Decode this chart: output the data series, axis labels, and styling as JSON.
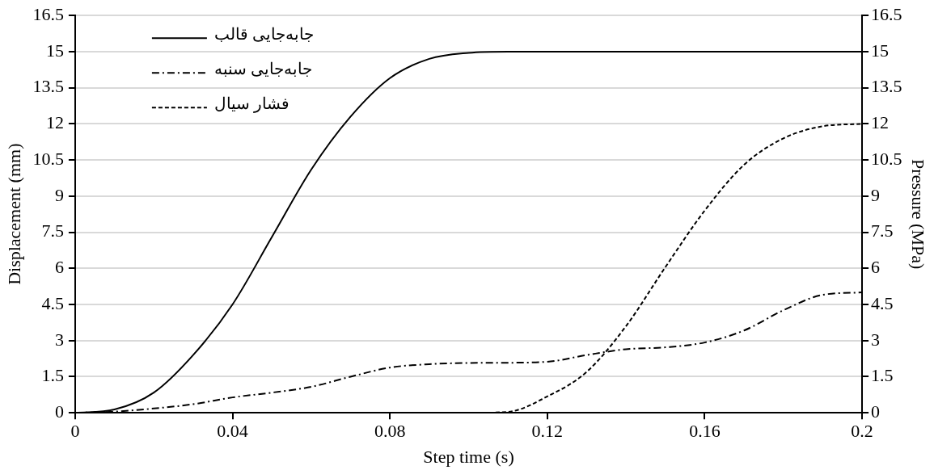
{
  "chart_data": {
    "type": "line",
    "xlabel": "Step time (s)",
    "ylabel": "Displacement (mm)",
    "y2label": "Pressure (MPa)",
    "x": [
      0,
      0.01,
      0.02,
      0.03,
      0.04,
      0.05,
      0.06,
      0.07,
      0.08,
      0.09,
      0.1,
      0.11,
      0.12,
      0.13,
      0.14,
      0.15,
      0.16,
      0.17,
      0.18,
      0.19,
      0.2
    ],
    "series": [
      {
        "name": "جابه‌جایی قالب",
        "color": "#000000",
        "line_style": "solid",
        "values": [
          0,
          0.14,
          0.84,
          2.4,
          4.5,
          7.3,
          10.1,
          12.3,
          13.9,
          14.7,
          14.95,
          15,
          15,
          15,
          15,
          15,
          15,
          15,
          15,
          15,
          15
        ]
      },
      {
        "name": "جابه‌جایی سنبه",
        "color": "#000000",
        "line_style": "dashdot",
        "values": [
          0,
          0.05,
          0.18,
          0.36,
          0.64,
          0.84,
          1.08,
          1.5,
          1.88,
          2.02,
          2.07,
          2.08,
          2.12,
          2.4,
          2.64,
          2.72,
          2.92,
          3.42,
          4.26,
          4.9,
          5.0
        ]
      },
      {
        "name": "فشار سیال",
        "color": "#000000",
        "line_style": "dashed",
        "axis": "y2",
        "values": [
          0,
          0,
          0,
          0,
          0,
          0,
          0,
          0,
          0,
          0,
          0,
          0.04,
          0.68,
          1.7,
          3.6,
          6.05,
          8.4,
          10.3,
          11.4,
          11.9,
          12.0
        ]
      }
    ],
    "xlim": [
      0,
      0.2
    ],
    "xticks": [
      0,
      0.04,
      0.08,
      0.12,
      0.16,
      0.2
    ],
    "ylim": [
      0,
      16.5
    ],
    "yticks": [
      0,
      1.5,
      3,
      4.5,
      6,
      7.5,
      9,
      10.5,
      12,
      13.5,
      15,
      16.5
    ],
    "y2lim": [
      0,
      16.5
    ],
    "y2ticks": [
      0,
      1.5,
      3,
      4.5,
      6,
      7.5,
      9,
      10.5,
      12,
      13.5,
      15,
      16.5
    ],
    "grid": "y",
    "legend": "top left",
    "marker": "none"
  }
}
